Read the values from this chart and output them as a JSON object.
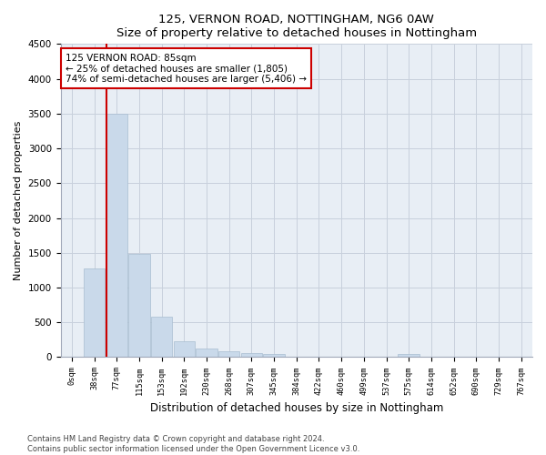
{
  "title": "125, VERNON ROAD, NOTTINGHAM, NG6 0AW",
  "subtitle": "Size of property relative to detached houses in Nottingham",
  "xlabel": "Distribution of detached houses by size in Nottingham",
  "ylabel": "Number of detached properties",
  "categories": [
    "0sqm",
    "38sqm",
    "77sqm",
    "115sqm",
    "153sqm",
    "192sqm",
    "230sqm",
    "268sqm",
    "307sqm",
    "345sqm",
    "384sqm",
    "422sqm",
    "460sqm",
    "499sqm",
    "537sqm",
    "575sqm",
    "614sqm",
    "652sqm",
    "690sqm",
    "729sqm",
    "767sqm"
  ],
  "values": [
    5,
    1270,
    3500,
    1480,
    580,
    230,
    120,
    80,
    55,
    40,
    5,
    0,
    0,
    0,
    0,
    50,
    0,
    0,
    0,
    0,
    0
  ],
  "bar_color": "#c9d9ea",
  "bar_edge_color": "#a8bdd0",
  "annotation_text": "125 VERNON ROAD: 85sqm\n← 25% of detached houses are smaller (1,805)\n74% of semi-detached houses are larger (5,406) →",
  "annotation_box_color": "#ffffff",
  "annotation_box_edge": "#cc0000",
  "red_line_color": "#cc0000",
  "footer_line1": "Contains HM Land Registry data © Crown copyright and database right 2024.",
  "footer_line2": "Contains public sector information licensed under the Open Government Licence v3.0.",
  "background_color": "#ffffff",
  "axes_bg_color": "#e8eef5",
  "grid_color": "#c8d0dc",
  "ylim": [
    0,
    4500
  ],
  "yticks": [
    0,
    500,
    1000,
    1500,
    2000,
    2500,
    3000,
    3500,
    4000,
    4500
  ]
}
